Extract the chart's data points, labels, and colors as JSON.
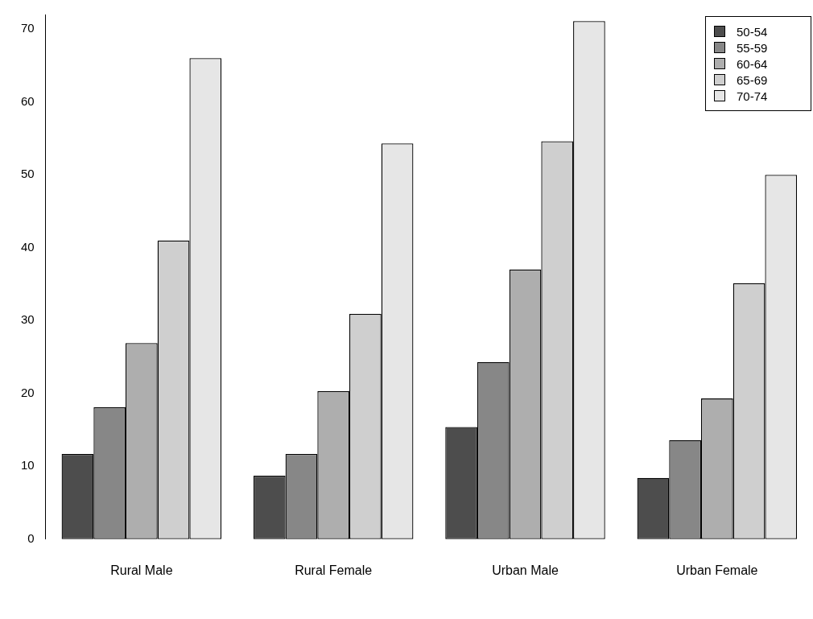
{
  "chart_data": {
    "type": "bar",
    "categories": [
      "Rural Male",
      "Rural Female",
      "Urban Male",
      "Urban Female"
    ],
    "series": [
      {
        "name": "50-54",
        "color": "#4d4d4d",
        "values": [
          11.7,
          8.7,
          15.4,
          8.4
        ]
      },
      {
        "name": "55-59",
        "color": "#878787",
        "values": [
          18.1,
          11.7,
          24.3,
          13.6
        ]
      },
      {
        "name": "60-64",
        "color": "#aeaeae",
        "values": [
          26.9,
          20.3,
          37.0,
          19.3
        ]
      },
      {
        "name": "65-69",
        "color": "#cfcfcf",
        "values": [
          41.0,
          30.9,
          54.6,
          35.1
        ]
      },
      {
        "name": "70-74",
        "color": "#e6e6e6",
        "values": [
          66.0,
          54.3,
          71.1,
          50.0
        ]
      }
    ],
    "ylim": [
      0,
      72
    ],
    "yticks": [
      0,
      10,
      20,
      30,
      40,
      50,
      60,
      70
    ],
    "grid": false,
    "legend": "top right"
  }
}
